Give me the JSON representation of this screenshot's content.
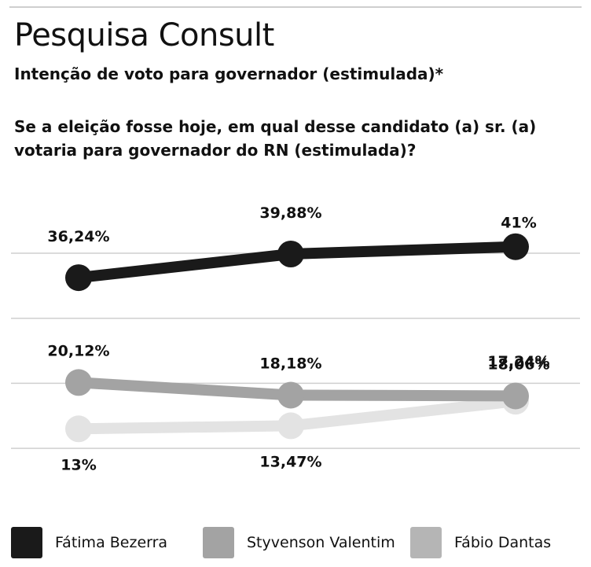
{
  "header": {
    "title": "Pesquisa Consult",
    "subtitle": "Intenção de voto para governador (estimulada)*",
    "question": "Se a eleição fosse hoje, em qual desse candidato (a) sr. (a) votaria para governador do RN (estimulada)?"
  },
  "chart_data": {
    "type": "line",
    "title": "Pesquisa Consult",
    "subtitle": "Intenção de voto para governador (estimulada)*",
    "x": [
      1,
      2,
      3
    ],
    "grid": true,
    "legend_placement": "bottom",
    "series": [
      {
        "name": "Fátima Bezerra",
        "values": [
          36.24,
          39.88,
          41
        ],
        "labels": [
          "36,24%",
          "39,88%",
          "41%"
        ],
        "color": "#1a1a1a"
      },
      {
        "name": "Styvenson Valentim",
        "values": [
          20.12,
          18.18,
          18.06
        ],
        "labels": [
          "20,12%",
          "18,18%",
          "18,06%"
        ],
        "color": "#a3a3a3"
      },
      {
        "name": "Fábio Dantas",
        "values": [
          13,
          13.47,
          17.24
        ],
        "labels": [
          "13%",
          "13,47%",
          "17,24%"
        ],
        "color": "#e3e3e3"
      }
    ]
  },
  "legend": [
    {
      "label": "Fátima Bezerra",
      "color": "#1a1a1a"
    },
    {
      "label": "Styvenson Valentim",
      "color": "#a3a3a3"
    },
    {
      "label": "Fábio Dantas",
      "color": "#b5b5b5"
    }
  ]
}
